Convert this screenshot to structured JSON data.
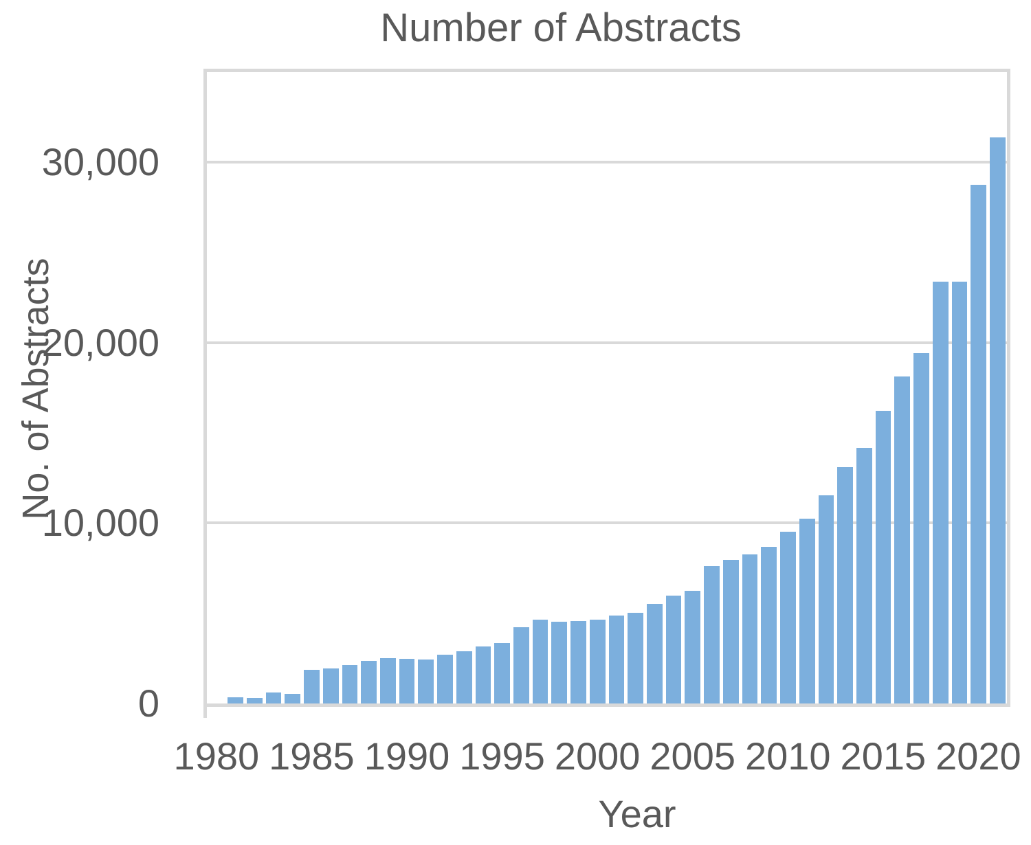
{
  "title": "Number of Abstracts",
  "x_axis_title": "Year",
  "y_axis_title": "No. of Abstracts",
  "colors": {
    "bar": "#7CAFDD",
    "gridline": "#D9D9D9",
    "border": "#D9D9D9",
    "text": "#595959",
    "background": "#FFFFFF"
  },
  "chart_data": {
    "type": "bar",
    "title": "Number of Abstracts",
    "xlabel": "Year",
    "ylabel": "No. of Abstracts",
    "categories": [
      1980,
      1981,
      1982,
      1983,
      1984,
      1985,
      1986,
      1987,
      1988,
      1989,
      1990,
      1991,
      1992,
      1993,
      1994,
      1995,
      1996,
      1997,
      1998,
      1999,
      2000,
      2001,
      2002,
      2003,
      2004,
      2005,
      2006,
      2007,
      2008,
      2009,
      2010,
      2011,
      2012,
      2013,
      2014,
      2015,
      2016,
      2017,
      2018,
      2019,
      2020,
      2021
    ],
    "values": [
      0,
      350,
      300,
      600,
      550,
      1870,
      1930,
      2140,
      2380,
      2500,
      2470,
      2420,
      2700,
      2880,
      3170,
      3360,
      4220,
      4650,
      4520,
      4560,
      4660,
      4890,
      5030,
      5510,
      5980,
      6240,
      7620,
      7950,
      8250,
      8700,
      9520,
      10250,
      11540,
      13100,
      14170,
      16240,
      18120,
      19420,
      23370,
      23370,
      28750,
      31400
    ],
    "x_tick_labels": [
      "1980",
      "1985",
      "1990",
      "1995",
      "2000",
      "2005",
      "2010",
      "2015",
      "2020"
    ],
    "x_tick_every": 5,
    "y_ticks": [
      0,
      10000,
      20000,
      30000
    ],
    "y_tick_labels": [
      "0",
      "10,000",
      "20,000",
      "30,000"
    ],
    "ylim": [
      0,
      35000
    ],
    "grid": true,
    "legend": false,
    "bar_color": "#7CAFDD"
  }
}
